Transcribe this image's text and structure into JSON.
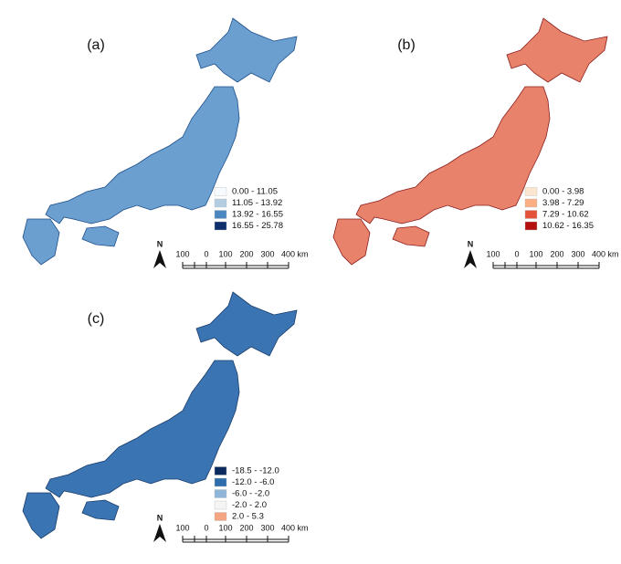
{
  "panels": [
    {
      "label": "(a)",
      "fill": "#6a9fd0",
      "outline": "#1f4f8a",
      "legend": [
        {
          "label": "0.00 - 11.05",
          "color": "#f7fbff"
        },
        {
          "label": "11.05 - 13.92",
          "color": "#b3cde3"
        },
        {
          "label": "13.92 - 16.55",
          "color": "#4a86c0"
        },
        {
          "label": "16.55 - 25.78",
          "color": "#0d2f6b"
        }
      ]
    },
    {
      "label": "(b)",
      "fill": "#e9826a",
      "outline": "#8a1f1f",
      "legend": [
        {
          "label": "0.00 - 3.98",
          "color": "#fde6d0"
        },
        {
          "label": "3.98 - 7.29",
          "color": "#fbae82"
        },
        {
          "label": "7.29 - 10.62",
          "color": "#e5523a"
        },
        {
          "label": "10.62 - 16.35",
          "color": "#b30f0f"
        }
      ]
    },
    {
      "label": "(c)",
      "fill": "#3b74b2",
      "outline": "#1a3d6b",
      "legend": [
        {
          "label": "-18.5 - -12.0",
          "color": "#0b2a5e"
        },
        {
          "label": "-12.0 - -6.0",
          "color": "#2f6ead"
        },
        {
          "label": "-6.0 - -2.0",
          "color": "#8fb6d9"
        },
        {
          "label": "-2.0 - 2.0",
          "color": "#f5f5f5"
        },
        {
          "label": "2.0 - 5.3",
          "color": "#f4a582"
        }
      ]
    }
  ],
  "north": "N",
  "scale_bar": [
    "100",
    "0",
    "100",
    "200",
    "300",
    "400 km"
  ]
}
